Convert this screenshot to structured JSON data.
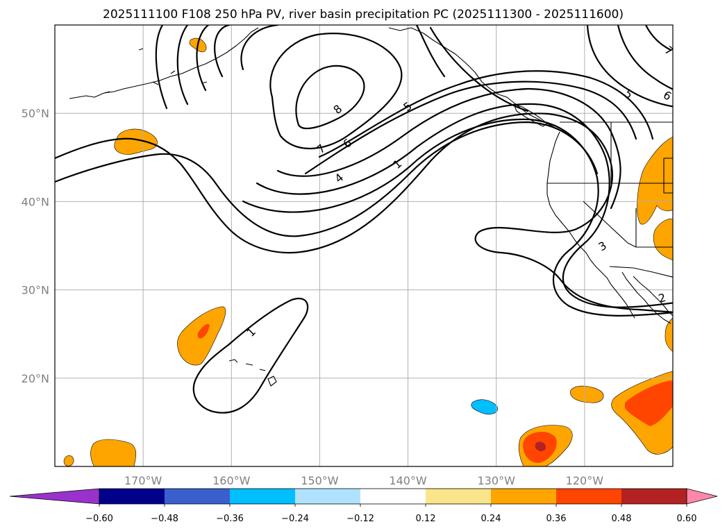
{
  "title": "2025111100 F108 250 hPa PV, river basin precipitation PC (2025111300 - 2025111600)",
  "map": {
    "lon_range": [
      -180,
      -110
    ],
    "lat_range": [
      10,
      60
    ],
    "lat_ticks": [
      {
        "value": 20,
        "label": "20°N"
      },
      {
        "value": 30,
        "label": "30°N"
      },
      {
        "value": 40,
        "label": "40°N"
      },
      {
        "value": 50,
        "label": "50°N"
      }
    ],
    "lon_ticks": [
      {
        "value": -170,
        "label": "170°W"
      },
      {
        "value": -160,
        "label": "160°W"
      },
      {
        "value": -150,
        "label": "150°W"
      },
      {
        "value": -140,
        "label": "140°W"
      },
      {
        "value": -130,
        "label": "130°W"
      },
      {
        "value": -120,
        "label": "120°W"
      }
    ],
    "contour_labels": [
      "8",
      "7",
      "6",
      "5",
      "4",
      "1",
      "1",
      "3",
      "2",
      "5",
      "6",
      "7"
    ]
  },
  "colorbar": {
    "colors": [
      "#9932cc",
      "#00008b",
      "#3a5fcd",
      "#00bfff",
      "#b0e2ff",
      "#ffffff",
      "#fbe58a",
      "#ffa500",
      "#ff4500",
      "#b22222",
      "#ff88aa"
    ],
    "labels": [
      "−0.60",
      "−0.48",
      "−0.36",
      "−0.24",
      "−0.12",
      "0.12",
      "0.24",
      "0.36",
      "0.48",
      "0.60"
    ]
  },
  "precip_colors": {
    "orange": "#ffa500",
    "red_orange": "#ff4500",
    "dark_red": "#b22222",
    "light_blue": "#00bfff"
  }
}
